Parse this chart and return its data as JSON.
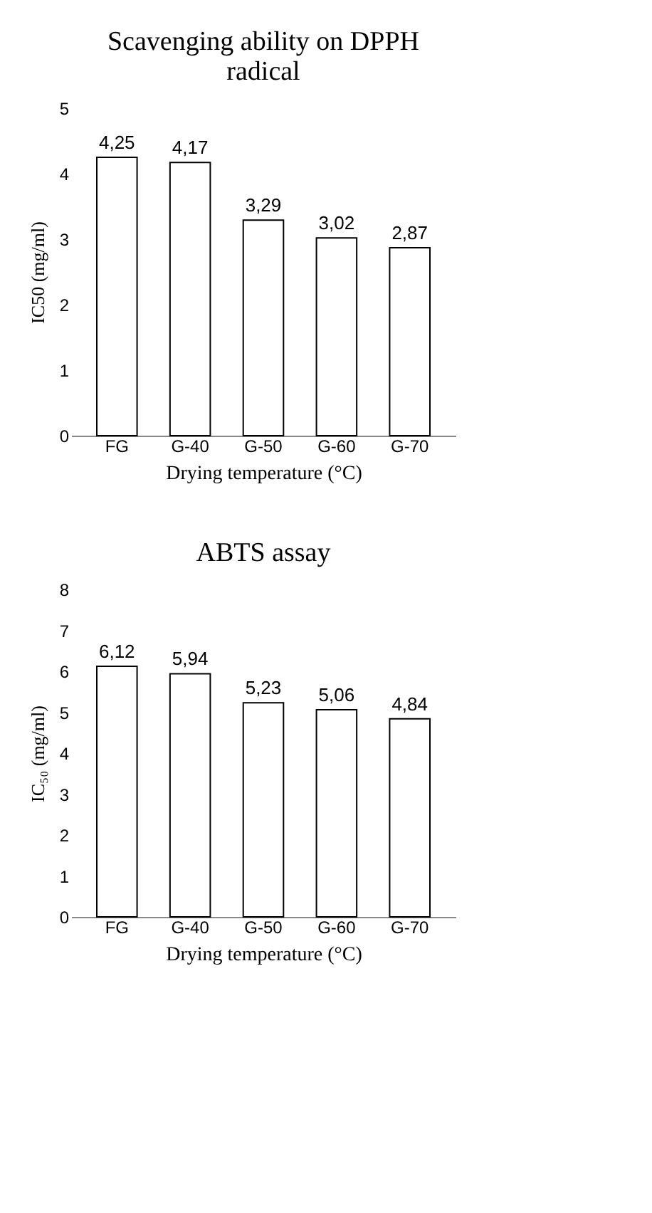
{
  "chart_data": [
    {
      "type": "bar",
      "title": "Scavenging ability on DPPH radical",
      "xlabel": "Drying temperature (°C)",
      "ylabel": "IC50 (mg/ml)",
      "categories": [
        "FG",
        "G-40",
        "G-50",
        "G-60",
        "G-70"
      ],
      "values": [
        4.25,
        4.17,
        3.29,
        3.02,
        2.87
      ],
      "value_labels": [
        "4,25",
        "4,17",
        "3,29",
        "3,02",
        "2,87"
      ],
      "color": "#ffffff",
      "ylim": [
        0,
        5
      ],
      "yticks": [
        0,
        1,
        2,
        3,
        4,
        5
      ],
      "grid": false
    },
    {
      "type": "bar",
      "title": "ABTS assay",
      "xlabel": "Drying temperature (°C)",
      "ylabel": "IC₅₀ (mg/ml)",
      "categories": [
        "FG",
        "G-40",
        "G-50",
        "G-60",
        "G-70"
      ],
      "values": [
        6.12,
        5.94,
        5.23,
        5.06,
        4.84
      ],
      "value_labels": [
        "6,12",
        "5,94",
        "5,23",
        "5,06",
        "4,84"
      ],
      "color": "#ffffff",
      "ylim": [
        0,
        8
      ],
      "yticks": [
        0,
        1,
        2,
        3,
        4,
        5,
        6,
        7,
        8
      ],
      "grid": false
    }
  ]
}
